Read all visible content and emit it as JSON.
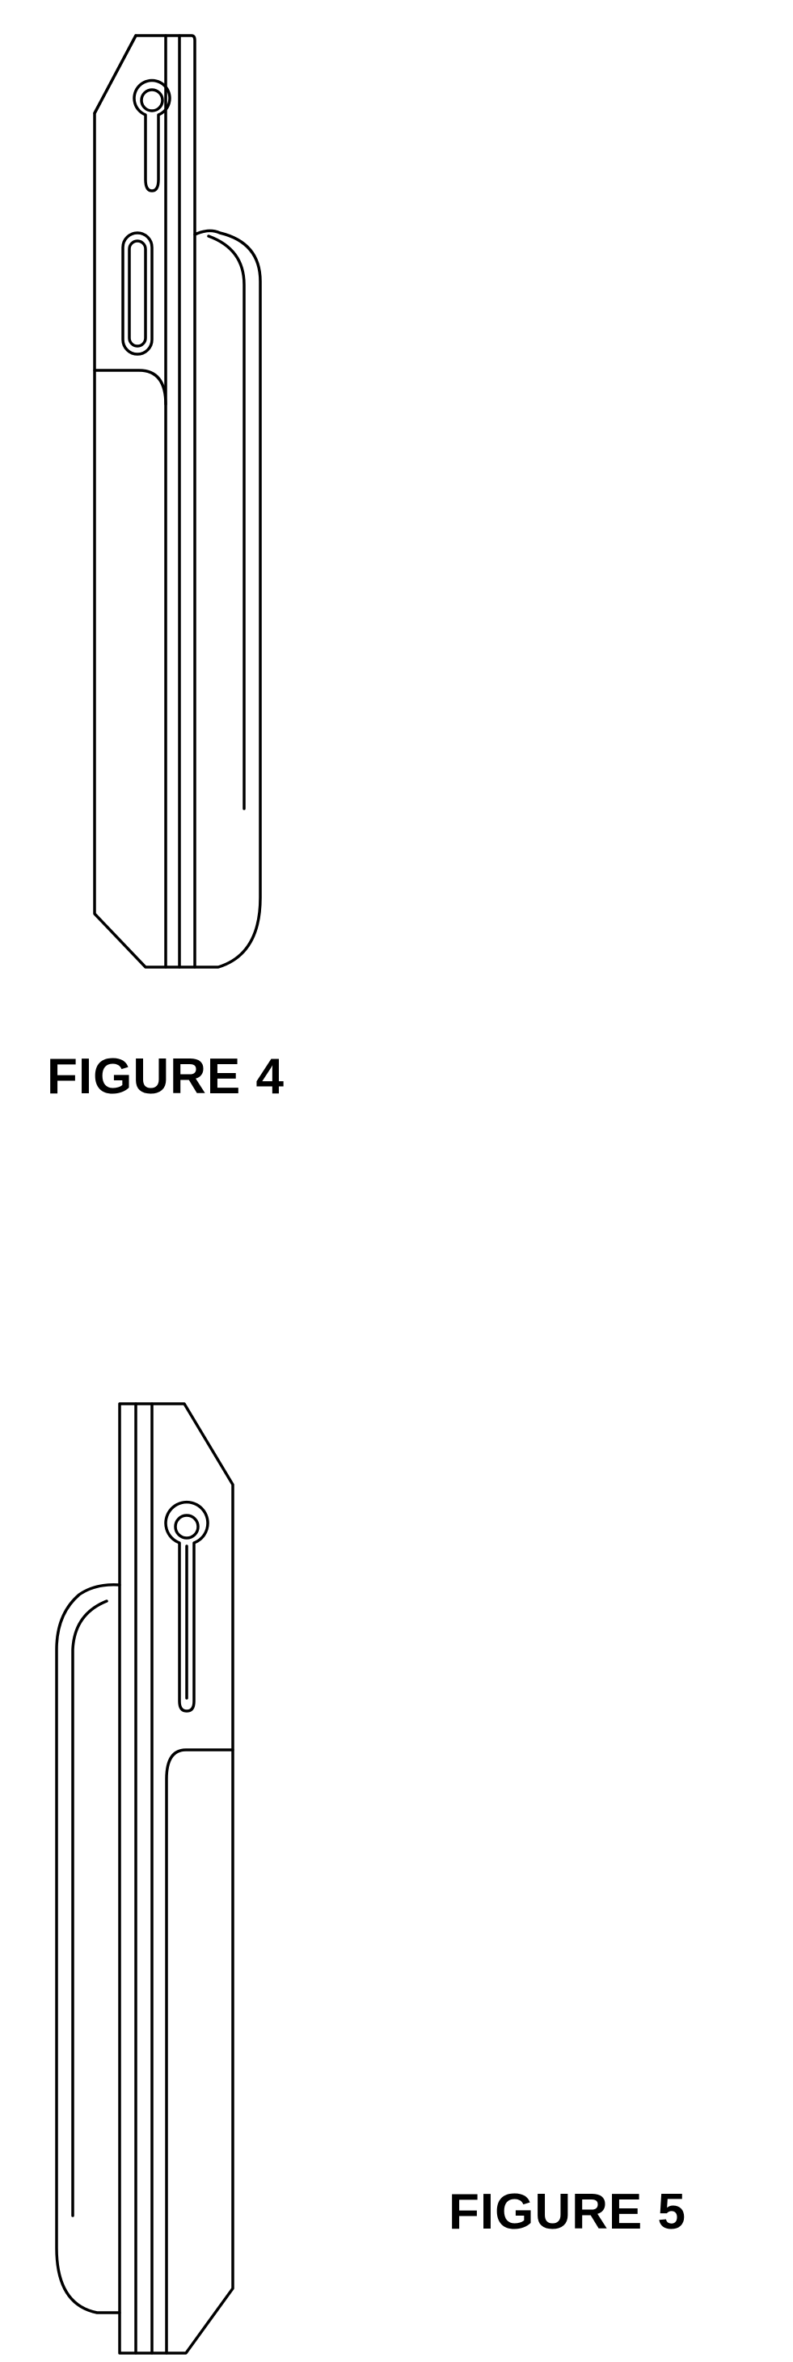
{
  "figures": [
    {
      "label": "FIGURE 4",
      "view": "side"
    },
    {
      "label": "FIGURE 5",
      "view": "opposite-side"
    }
  ],
  "colors": {
    "line": "#000000",
    "background": "#ffffff"
  }
}
